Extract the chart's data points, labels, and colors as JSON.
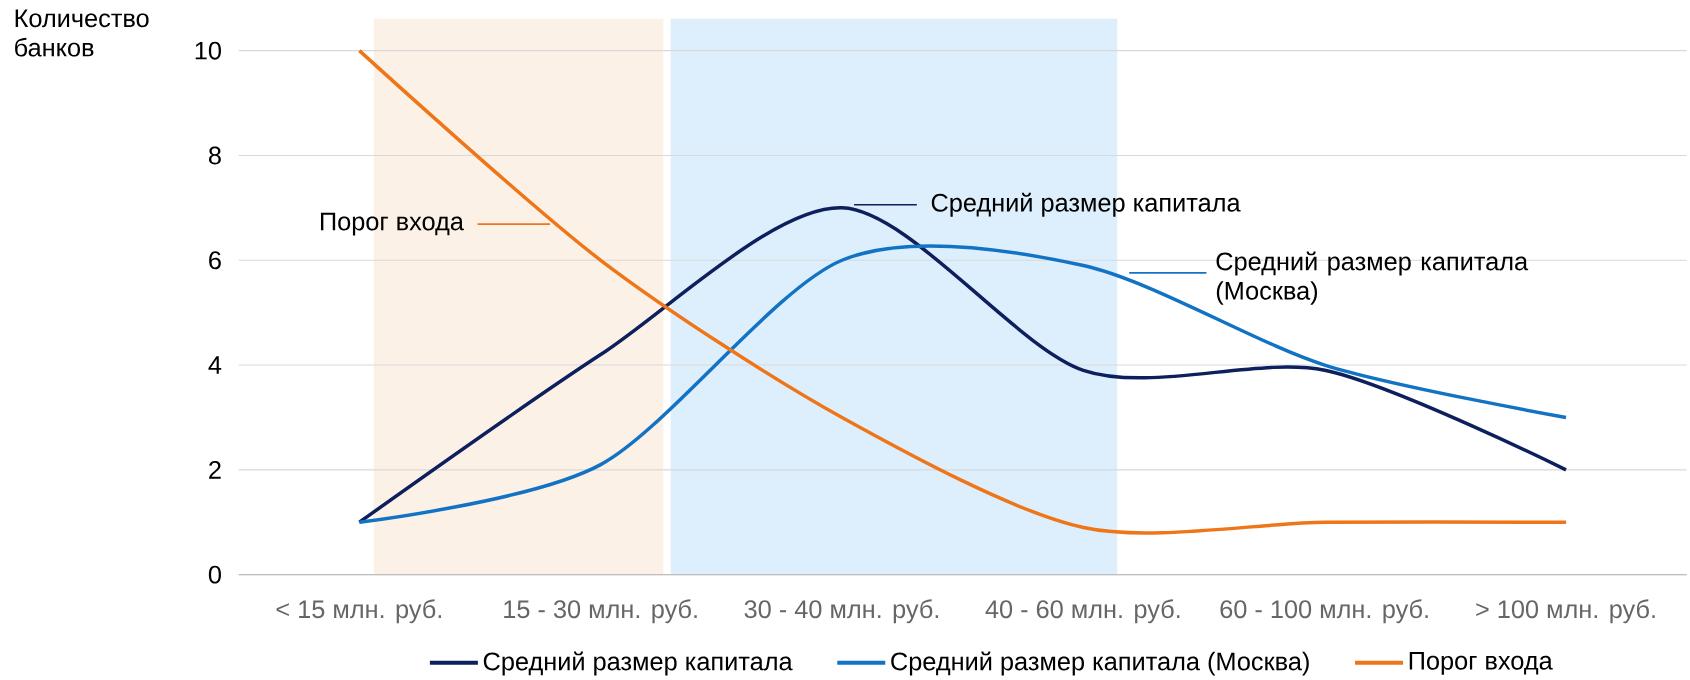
{
  "chart_data": {
    "type": "line",
    "ylabel": "Количество банков",
    "categories": [
      "< 15 млн. руб.",
      "15 - 30 млн. руб.",
      "30 - 40 млн. руб.",
      "40 - 60 млн. руб.",
      "60 - 100 млн. руб.",
      "> 100 млн. руб."
    ],
    "series": [
      {
        "name": "Средний размер капитала",
        "color": "#0d1f5c",
        "values": [
          1,
          4.2,
          7,
          3.9,
          3.9,
          2
        ]
      },
      {
        "name": "Средний размер капитала (Москва)",
        "color": "#1273c4",
        "values": [
          1,
          2.1,
          6,
          5.9,
          4,
          3
        ]
      },
      {
        "name": "Порог входа",
        "color": "#ef7618",
        "values": [
          10,
          6,
          3,
          0.9,
          1,
          1
        ]
      }
    ],
    "annotations": [
      "Порог входа",
      "Средний размер капитала",
      "Средний размер капитала (Москва)"
    ],
    "ylim": [
      0,
      10
    ],
    "yticks": [
      0,
      2,
      4,
      6,
      8,
      10
    ],
    "grid": "y",
    "legend": "bottom",
    "line_style": "solid"
  }
}
